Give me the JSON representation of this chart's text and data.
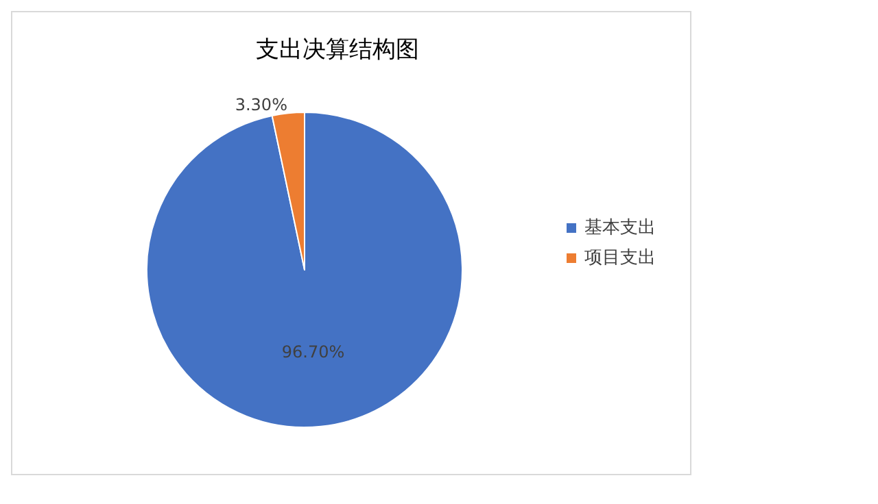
{
  "chart_data": {
    "type": "pie",
    "title": "支出决算结构图",
    "categories": [
      "基本支出",
      "项目支出"
    ],
    "values": [
      96.7,
      3.3
    ],
    "colors": [
      "#4472c4",
      "#ed7d31"
    ],
    "value_labels": [
      "96.70%",
      "3.30%"
    ],
    "legend": "right"
  }
}
